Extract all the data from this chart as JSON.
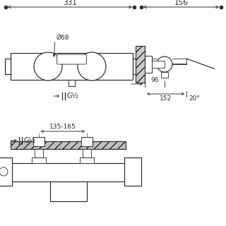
{
  "bg_color": "#ffffff",
  "lc": "#2a2a2a",
  "dim_331": "331",
  "dim_156": "156",
  "dim_68": "Ø68",
  "dim_G12_top": "G½",
  "dim_96": "96",
  "dim_152": "152",
  "dim_20deg": "20°",
  "dim_135_165": "135-165",
  "dim_G12_bot": "G½"
}
